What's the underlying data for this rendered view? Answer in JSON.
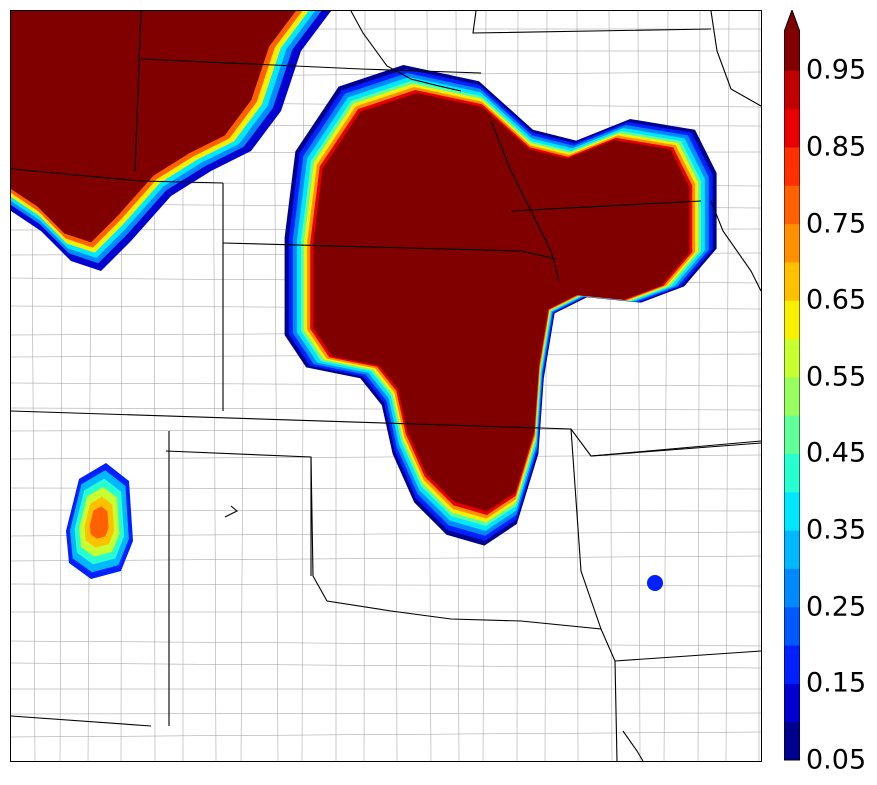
{
  "map": {
    "variable": "probability",
    "palette_name": "jet",
    "features": [
      "state-boundaries",
      "county-boundaries",
      "rivers"
    ]
  },
  "colorbar": {
    "extend": "max",
    "levels": [
      0.05,
      0.1,
      0.15,
      0.2,
      0.25,
      0.3,
      0.35,
      0.4,
      0.45,
      0.5,
      0.55,
      0.6,
      0.65,
      0.7,
      0.75,
      0.8,
      0.85,
      0.9,
      0.95,
      1.0
    ],
    "colors": [
      "#00008f",
      "#0000d0",
      "#0020ff",
      "#0058ff",
      "#0088ff",
      "#00b8ff",
      "#00e8ff",
      "#28ffd0",
      "#60ff98",
      "#98ff60",
      "#c8ff30",
      "#f8f000",
      "#ffc000",
      "#ff9000",
      "#ff6000",
      "#ff3000",
      "#e80000",
      "#c00000",
      "#800000"
    ],
    "tick_labels": [
      "0.05",
      "0.15",
      "0.25",
      "0.35",
      "0.45",
      "0.55",
      "0.65",
      "0.75",
      "0.85",
      "0.95"
    ]
  }
}
